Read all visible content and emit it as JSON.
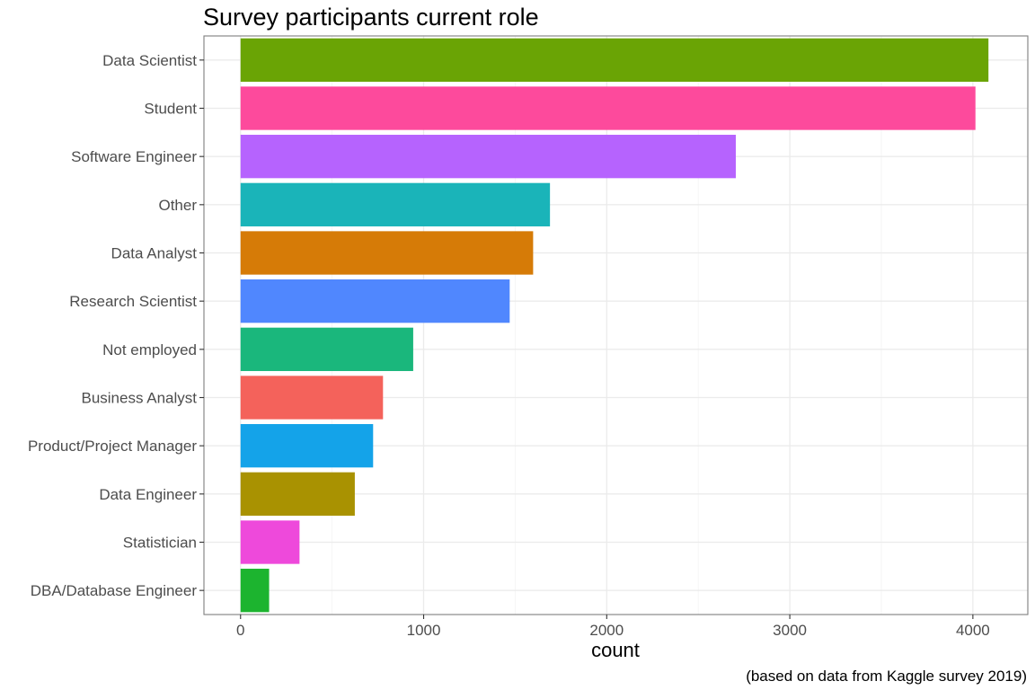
{
  "chart_data": {
    "type": "bar",
    "orientation": "horizontal",
    "title": "Survey participants current role",
    "xlabel": "count",
    "ylabel": "",
    "caption": "(based on data from Kaggle survey 2019)",
    "xlim": [
      -200,
      4300
    ],
    "xticks": [
      0,
      1000,
      2000,
      3000,
      4000
    ],
    "grid": true,
    "legend": "none",
    "categories": [
      "Data Scientist",
      "Student",
      "Software Engineer",
      "Other",
      "Data Analyst",
      "Research Scientist",
      "Not employed",
      "Business Analyst",
      "Product/Project Manager",
      "Data Engineer",
      "Statistician",
      "DBA/Database Engineer"
    ],
    "values": [
      4085,
      4014,
      2705,
      1690,
      1598,
      1470,
      943,
      778,
      724,
      624,
      322,
      156
    ],
    "colors": [
      "#6aa405",
      "#fd4a9c",
      "#b663fe",
      "#1ab4b9",
      "#d67b07",
      "#5087fe",
      "#1ab77c",
      "#f4625b",
      "#14a3e9",
      "#a99201",
      "#ee49db",
      "#1cb42f"
    ]
  }
}
